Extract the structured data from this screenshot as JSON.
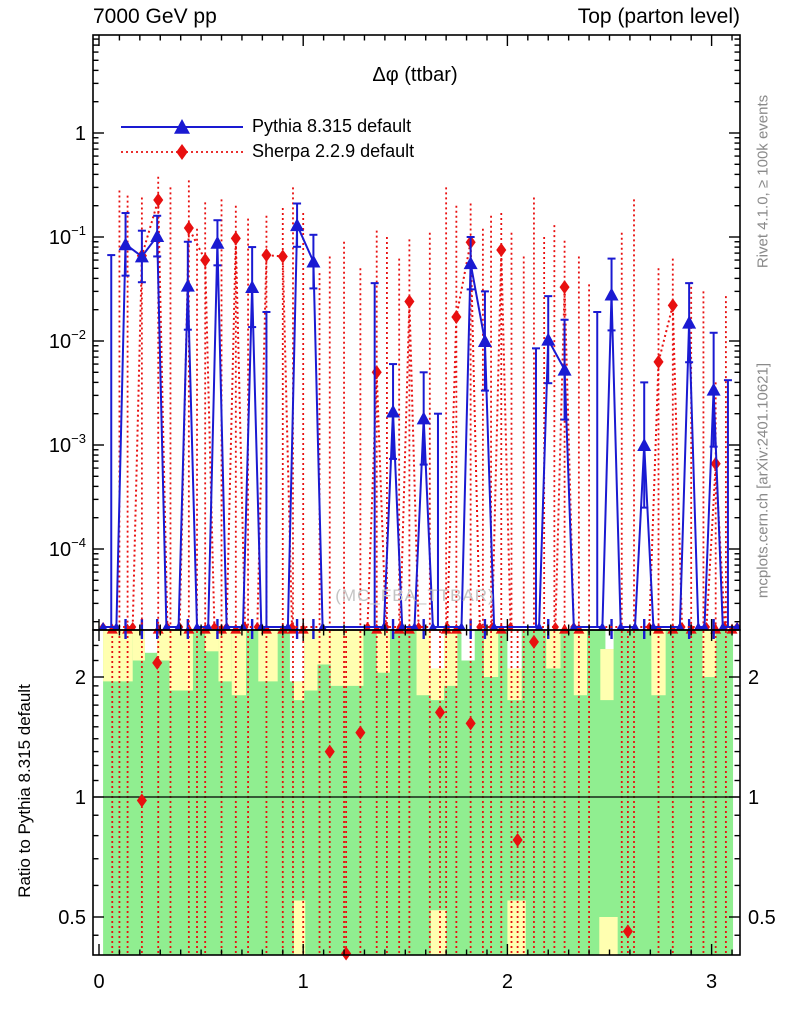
{
  "header": {
    "left": "7000 GeV pp",
    "right": "Top (parton level)"
  },
  "side_text": {
    "top": "Rivet 4.1.0, ≥ 100k events",
    "bottom": "mcplots.cern.ch [arXiv:2401.10621]"
  },
  "watermark": "(MC_FBA_TTBAR)",
  "legend": [
    {
      "label": "Pythia 8.315 default",
      "marker": "triangle",
      "line": "solid",
      "color": "#1a1ad2"
    },
    {
      "label": "Sherpa 2.2.9 default",
      "marker": "diamond",
      "line": "dotted",
      "color": "#e81010"
    }
  ],
  "colors": {
    "pythia": "#1a1ad2",
    "sherpa": "#e81010",
    "band_green": "#90ee90",
    "band_yellow": "#ffffb0",
    "axis": "#000000",
    "side_text": "#8a8a8a",
    "watermark": "#c4c4c4"
  },
  "chart_data": {
    "type": "line",
    "title": "Δφ (ttbar)",
    "x_axis": {
      "range": [
        -0.03,
        3.1416
      ],
      "major_ticks": [
        0,
        1,
        2,
        3
      ],
      "tick_labels": [
        "0",
        "1",
        "2",
        "3"
      ],
      "minor_step": 0.1
    },
    "y_axis": {
      "scale": "log",
      "range": [
        1.7e-05,
        8.8
      ],
      "major_ticks": [
        {
          "v": 1,
          "base": "1",
          "exp": ""
        },
        {
          "v": 0.1,
          "base": "10",
          "exp": "-1"
        },
        {
          "v": 0.01,
          "base": "10",
          "exp": "-2"
        },
        {
          "v": 0.001,
          "base": "10",
          "exp": "-3"
        },
        {
          "v": 0.0001,
          "base": "10",
          "exp": "-4"
        }
      ]
    },
    "floor_value": 1.77e-05,
    "series": [
      {
        "name": "Pythia 8.315 default",
        "color": "#1a1ad2",
        "marker": "triangle",
        "line": "solid",
        "points": [
          [
            0.13,
            0.085,
            0.17
          ],
          [
            0.21,
            0.065,
            0.115
          ],
          [
            0.285,
            0.102,
            0.16
          ],
          [
            0.435,
            0.034,
            0.09
          ],
          [
            0.58,
            0.088,
            0.145
          ],
          [
            0.75,
            0.033,
            0.08
          ],
          [
            0.97,
            0.13,
            0.21
          ],
          [
            1.05,
            0.058,
            0.105
          ],
          [
            1.44,
            0.0021,
            0.006
          ],
          [
            1.59,
            0.0018,
            0.005
          ],
          [
            1.82,
            0.056,
            0.1
          ],
          [
            1.89,
            0.01,
            0.03
          ],
          [
            2.2,
            0.0103,
            0.027
          ],
          [
            2.28,
            0.0053,
            0.016
          ],
          [
            2.51,
            0.028,
            0.062
          ],
          [
            2.67,
            0.001,
            0.004
          ],
          [
            2.89,
            0.015,
            0.036
          ],
          [
            3.01,
            0.0034,
            0.012
          ]
        ],
        "zero_spikes": [
          [
            0.06,
            0.067
          ],
          [
            0.82,
            0.019
          ],
          [
            1.35,
            0.036
          ],
          [
            1.66,
            0.002
          ],
          [
            2.14,
            0.0085
          ],
          [
            2.44,
            0.019
          ],
          [
            3.08,
            0.0042
          ]
        ]
      },
      {
        "name": "Sherpa 2.2.9 default",
        "color": "#e81010",
        "marker": "diamond",
        "line": "dotted",
        "points": [
          [
            0.21,
            0.066,
            0.24
          ],
          [
            0.29,
            0.227,
            0.38
          ],
          [
            0.44,
            0.122,
            0.35
          ],
          [
            0.52,
            0.06,
            0.215
          ],
          [
            0.67,
            0.097,
            0.2
          ],
          [
            0.82,
            0.067,
            0.16
          ],
          [
            0.9,
            0.065,
            0.19
          ],
          [
            1.36,
            0.005,
            0.115
          ],
          [
            1.52,
            0.024,
            0.095
          ],
          [
            1.75,
            0.017,
            0.2
          ],
          [
            1.82,
            0.089,
            0.21
          ],
          [
            1.97,
            0.075,
            0.17
          ],
          [
            2.28,
            0.033,
            0.092
          ],
          [
            2.74,
            0.0063,
            0.05
          ],
          [
            2.81,
            0.022,
            0.062
          ],
          [
            3.02,
            0.00066,
            0.004
          ]
        ],
        "zero_spikes": [
          [
            0.1,
            0.28
          ],
          [
            0.14,
            0.25
          ],
          [
            0.35,
            0.3
          ],
          [
            0.48,
            0.12
          ],
          [
            0.6,
            0.23
          ],
          [
            0.73,
            0.15
          ],
          [
            0.95,
            0.3
          ],
          [
            1.0,
            0.17
          ],
          [
            1.08,
            0.045
          ],
          [
            1.13,
            0.065
          ],
          [
            1.2,
            0.09
          ],
          [
            1.28,
            0.05
          ],
          [
            1.41,
            0.1
          ],
          [
            1.47,
            0.062
          ],
          [
            1.62,
            0.11
          ],
          [
            1.7,
            0.3
          ],
          [
            1.88,
            0.12
          ],
          [
            1.92,
            0.16
          ],
          [
            2.02,
            0.11
          ],
          [
            2.08,
            0.065
          ],
          [
            2.13,
            0.24
          ],
          [
            2.18,
            0.1
          ],
          [
            2.23,
            0.13
          ],
          [
            2.35,
            0.065
          ],
          [
            2.4,
            0.035
          ],
          [
            2.56,
            0.11
          ],
          [
            2.62,
            0.23
          ],
          [
            2.9,
            0.037
          ],
          [
            2.96,
            0.03
          ],
          [
            3.07,
            0.027
          ]
        ]
      }
    ],
    "ratio_panel": {
      "ylabel": "Ratio to Pythia 8.315 default",
      "scale": "log",
      "range": [
        0.402,
        2.625
      ],
      "major_ticks": [
        {
          "v": 2,
          "label": "2"
        },
        {
          "v": 1,
          "label": "1"
        },
        {
          "v": 0.5,
          "label": "0.5"
        }
      ],
      "minor_ticks": [
        0.4,
        0.45,
        0.6,
        0.7,
        0.8,
        0.9,
        1.1,
        1.2,
        1.3,
        1.4,
        1.5,
        1.6,
        1.7,
        1.8,
        1.9,
        2.2,
        2.4,
        2.6
      ],
      "reference_line": 1,
      "sherpa_ratio_points": [
        [
          0.21,
          0.98
        ],
        [
          0.285,
          2.17
        ],
        [
          1.13,
          1.3
        ],
        [
          1.21,
          0.405
        ],
        [
          1.28,
          1.45
        ],
        [
          1.67,
          1.63
        ],
        [
          1.82,
          1.53
        ],
        [
          2.05,
          0.78
        ],
        [
          2.13,
          2.45
        ],
        [
          2.59,
          0.46
        ]
      ],
      "spikes_x": [
        0.065,
        0.1,
        0.14,
        0.21,
        0.29,
        0.35,
        0.44,
        0.48,
        0.52,
        0.6,
        0.67,
        0.73,
        0.82,
        0.9,
        0.95,
        1.0,
        1.08,
        1.13,
        1.2,
        1.21,
        1.28,
        1.36,
        1.41,
        1.47,
        1.52,
        1.62,
        1.67,
        1.7,
        1.75,
        1.82,
        1.88,
        1.92,
        1.97,
        2.02,
        2.05,
        2.08,
        2.13,
        2.18,
        2.23,
        2.28,
        2.35,
        2.4,
        2.56,
        2.59,
        2.62,
        2.74,
        2.81,
        2.9,
        2.96,
        3.02,
        3.07
      ],
      "clipped_high_x": [
        0.065,
        0.14,
        0.29,
        0.44,
        0.52,
        0.6,
        0.67,
        0.82,
        0.9,
        0.95,
        1.0,
        1.36,
        1.47,
        1.52,
        1.7,
        1.75,
        1.97,
        2.28,
        2.35,
        2.74,
        2.81,
        2.9,
        3.02,
        3.1
      ],
      "clipped_low_x": [
        0.13,
        0.21,
        0.285,
        0.435,
        0.58,
        0.75,
        0.97,
        1.05,
        1.44,
        1.59,
        1.82,
        1.89,
        2.2,
        2.51,
        2.67,
        2.89,
        3.01
      ],
      "bands": {
        "green_span": [
          0.02,
          3.105
        ],
        "white_columns": [
          [
            0.225,
            0.285,
            2.62,
            2.3
          ],
          [
            0.935,
            1.005,
            2.62,
            1.95
          ],
          [
            1.62,
            1.69,
            2.62,
            2.1
          ],
          [
            1.775,
            1.84,
            2.62,
            2.2
          ],
          [
            2.0,
            2.07,
            2.62,
            2.1
          ],
          [
            2.48,
            2.52,
            2.62,
            2.35
          ]
        ],
        "yellow_columns": [
          [
            0.02,
            0.165,
            2.62,
            1.95
          ],
          [
            0.165,
            0.225,
            2.62,
            2.2
          ],
          [
            0.285,
            0.345,
            2.62,
            2.2
          ],
          [
            0.345,
            0.46,
            2.62,
            1.85
          ],
          [
            0.52,
            0.585,
            2.62,
            2.32
          ],
          [
            0.585,
            0.65,
            2.62,
            1.95
          ],
          [
            0.65,
            0.72,
            2.62,
            1.8
          ],
          [
            0.78,
            0.875,
            2.62,
            1.95
          ],
          [
            0.955,
            1.005,
            1.95,
            1.75
          ],
          [
            1.005,
            1.07,
            2.62,
            1.85
          ],
          [
            1.07,
            1.135,
            2.62,
            2.15
          ],
          [
            1.135,
            1.295,
            2.62,
            1.9
          ],
          [
            1.36,
            1.425,
            2.62,
            2.05
          ],
          [
            1.555,
            1.625,
            2.62,
            1.8
          ],
          [
            1.625,
            1.69,
            2.1,
            1.75
          ],
          [
            1.69,
            1.755,
            2.62,
            1.9
          ],
          [
            1.885,
            1.955,
            2.62,
            2.0
          ],
          [
            2.0,
            2.07,
            2.1,
            1.75
          ],
          [
            2.19,
            2.26,
            2.62,
            2.1
          ],
          [
            2.325,
            2.39,
            2.62,
            1.8
          ],
          [
            2.455,
            2.52,
            2.35,
            1.75
          ],
          [
            2.705,
            2.775,
            2.62,
            1.8
          ],
          [
            2.955,
            3.02,
            2.62,
            2.0
          ]
        ],
        "yellow_bottom": [
          [
            0.955,
            1.01,
            0.55,
            0.402
          ],
          [
            1.625,
            1.7,
            0.52,
            0.402
          ],
          [
            2.0,
            2.09,
            0.55,
            0.402
          ],
          [
            2.45,
            2.54,
            0.5,
            0.402
          ]
        ]
      }
    }
  }
}
